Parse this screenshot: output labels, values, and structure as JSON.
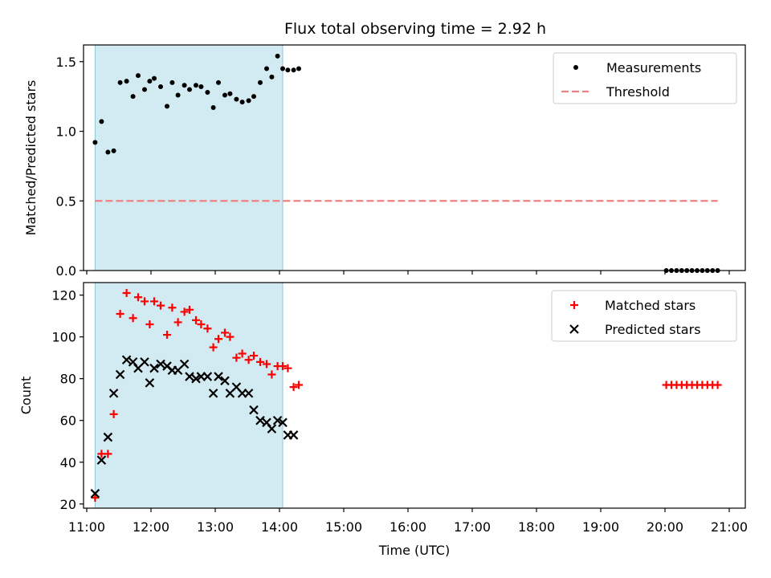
{
  "figure": {
    "title": "Flux total observing time = 2.92 h"
  },
  "chart_data": [
    {
      "type": "scatter",
      "ylabel": "Matched/Predicted stars",
      "ylim": [
        0.0,
        1.62
      ],
      "xlim": [
        10.95,
        21.25
      ],
      "yticks": [
        {
          "value": 0.0,
          "label": "0.0"
        },
        {
          "value": 0.5,
          "label": "0.5"
        },
        {
          "value": 1.0,
          "label": "1.0"
        },
        {
          "value": 1.5,
          "label": "1.5"
        }
      ],
      "shaded_span": {
        "x0": 11.13,
        "x1": 14.05,
        "color": "#add8e6"
      },
      "legend": {
        "placement": "top-right",
        "items": [
          "Measurements",
          "Threshold"
        ]
      },
      "series": [
        {
          "name": "Measurements",
          "color": "#000000",
          "marker": "dot",
          "points": [
            [
              11.13,
              0.92
            ],
            [
              11.23,
              1.07
            ],
            [
              11.33,
              0.85
            ],
            [
              11.42,
              0.86
            ],
            [
              11.52,
              1.35
            ],
            [
              11.62,
              1.36
            ],
            [
              11.72,
              1.25
            ],
            [
              11.8,
              1.4
            ],
            [
              11.9,
              1.3
            ],
            [
              11.98,
              1.36
            ],
            [
              12.05,
              1.38
            ],
            [
              12.15,
              1.32
            ],
            [
              12.25,
              1.18
            ],
            [
              12.33,
              1.35
            ],
            [
              12.42,
              1.26
            ],
            [
              12.52,
              1.33
            ],
            [
              12.6,
              1.3
            ],
            [
              12.7,
              1.33
            ],
            [
              12.78,
              1.32
            ],
            [
              12.88,
              1.28
            ],
            [
              12.97,
              1.17
            ],
            [
              13.05,
              1.35
            ],
            [
              13.15,
              1.26
            ],
            [
              13.23,
              1.27
            ],
            [
              13.33,
              1.23
            ],
            [
              13.42,
              1.21
            ],
            [
              13.52,
              1.22
            ],
            [
              13.6,
              1.25
            ],
            [
              13.7,
              1.35
            ],
            [
              13.8,
              1.45
            ],
            [
              13.88,
              1.39
            ],
            [
              13.97,
              1.54
            ],
            [
              14.05,
              1.45
            ],
            [
              14.13,
              1.44
            ],
            [
              14.22,
              1.44
            ],
            [
              14.3,
              1.45
            ],
            [
              20.02,
              0.0
            ],
            [
              20.1,
              0.0
            ],
            [
              20.18,
              0.0
            ],
            [
              20.26,
              0.0
            ],
            [
              20.34,
              0.0
            ],
            [
              20.42,
              0.0
            ],
            [
              20.5,
              0.0
            ],
            [
              20.58,
              0.0
            ],
            [
              20.66,
              0.0
            ],
            [
              20.74,
              0.0
            ],
            [
              20.82,
              0.0
            ]
          ]
        },
        {
          "name": "Threshold",
          "color": "#f08080",
          "style": "dashed",
          "points": [
            [
              11.13,
              0.5
            ],
            [
              20.82,
              0.5
            ]
          ]
        }
      ]
    },
    {
      "type": "scatter",
      "ylabel": "Count",
      "xlabel": "Time (UTC)",
      "ylim": [
        18,
        126
      ],
      "xlim": [
        10.95,
        21.25
      ],
      "yticks": [
        {
          "value": 20,
          "label": "20"
        },
        {
          "value": 40,
          "label": "40"
        },
        {
          "value": 60,
          "label": "60"
        },
        {
          "value": 80,
          "label": "80"
        },
        {
          "value": 100,
          "label": "100"
        },
        {
          "value": 120,
          "label": "120"
        }
      ],
      "xticks": [
        {
          "value": 11,
          "label": "11:00"
        },
        {
          "value": 12,
          "label": "12:00"
        },
        {
          "value": 13,
          "label": "13:00"
        },
        {
          "value": 14,
          "label": "14:00"
        },
        {
          "value": 15,
          "label": "15:00"
        },
        {
          "value": 16,
          "label": "16:00"
        },
        {
          "value": 17,
          "label": "17:00"
        },
        {
          "value": 18,
          "label": "18:00"
        },
        {
          "value": 19,
          "label": "19:00"
        },
        {
          "value": 20,
          "label": "20:00"
        },
        {
          "value": 21,
          "label": "21:00"
        }
      ],
      "shaded_span": {
        "x0": 11.13,
        "x1": 14.05,
        "color": "#add8e6"
      },
      "legend": {
        "placement": "top-right",
        "items": [
          "Matched stars",
          "Predicted stars"
        ]
      },
      "series": [
        {
          "name": "Matched stars",
          "color": "#ff0000",
          "marker": "plus",
          "points": [
            [
              11.13,
              23
            ],
            [
              11.23,
              44
            ],
            [
              11.33,
              44
            ],
            [
              11.42,
              63
            ],
            [
              11.52,
              111
            ],
            [
              11.62,
              121
            ],
            [
              11.72,
              109
            ],
            [
              11.8,
              119
            ],
            [
              11.9,
              117
            ],
            [
              11.98,
              106
            ],
            [
              12.05,
              117
            ],
            [
              12.15,
              115
            ],
            [
              12.25,
              101
            ],
            [
              12.33,
              114
            ],
            [
              12.42,
              107
            ],
            [
              12.52,
              112
            ],
            [
              12.6,
              113
            ],
            [
              12.7,
              108
            ],
            [
              12.78,
              106
            ],
            [
              12.88,
              104
            ],
            [
              12.97,
              95
            ],
            [
              13.05,
              99
            ],
            [
              13.15,
              102
            ],
            [
              13.23,
              100
            ],
            [
              13.33,
              90
            ],
            [
              13.42,
              92
            ],
            [
              13.52,
              89
            ],
            [
              13.6,
              91
            ],
            [
              13.7,
              88
            ],
            [
              13.8,
              87
            ],
            [
              13.88,
              82
            ],
            [
              13.97,
              86
            ],
            [
              14.05,
              86
            ],
            [
              14.13,
              85
            ],
            [
              14.22,
              76
            ],
            [
              14.3,
              77
            ],
            [
              20.02,
              77
            ],
            [
              20.1,
              77
            ],
            [
              20.18,
              77
            ],
            [
              20.26,
              77
            ],
            [
              20.34,
              77
            ],
            [
              20.42,
              77
            ],
            [
              20.5,
              77
            ],
            [
              20.58,
              77
            ],
            [
              20.66,
              77
            ],
            [
              20.74,
              77
            ],
            [
              20.82,
              77
            ]
          ]
        },
        {
          "name": "Predicted stars",
          "color": "#000000",
          "marker": "x",
          "points": [
            [
              11.13,
              25
            ],
            [
              11.23,
              41
            ],
            [
              11.33,
              52
            ],
            [
              11.42,
              73
            ],
            [
              11.52,
              82
            ],
            [
              11.62,
              89
            ],
            [
              11.72,
              88
            ],
            [
              11.8,
              85
            ],
            [
              11.9,
              88
            ],
            [
              11.98,
              78
            ],
            [
              12.05,
              85
            ],
            [
              12.15,
              87
            ],
            [
              12.25,
              86
            ],
            [
              12.33,
              84
            ],
            [
              12.42,
              84
            ],
            [
              12.52,
              87
            ],
            [
              12.6,
              81
            ],
            [
              12.7,
              80
            ],
            [
              12.78,
              81
            ],
            [
              12.88,
              81
            ],
            [
              12.97,
              73
            ],
            [
              13.05,
              81
            ],
            [
              13.15,
              79
            ],
            [
              13.23,
              73
            ],
            [
              13.33,
              76
            ],
            [
              13.42,
              73
            ],
            [
              13.52,
              73
            ],
            [
              13.6,
              65
            ],
            [
              13.7,
              60
            ],
            [
              13.8,
              59
            ],
            [
              13.88,
              56
            ],
            [
              13.97,
              60
            ],
            [
              14.05,
              59
            ],
            [
              14.13,
              53
            ],
            [
              14.22,
              53
            ]
          ]
        }
      ]
    }
  ]
}
